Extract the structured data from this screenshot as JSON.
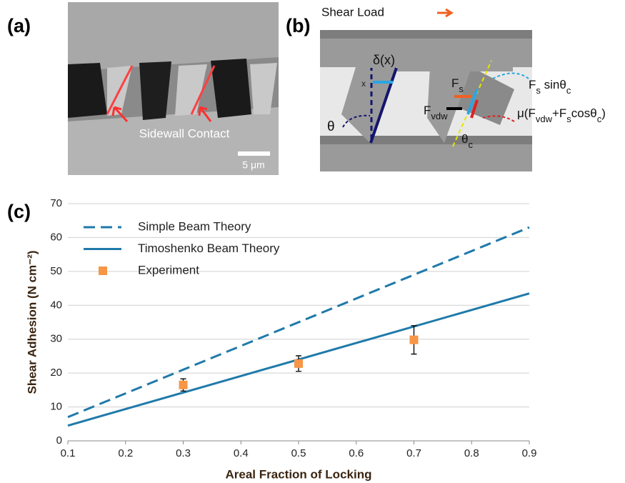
{
  "panel_a": {
    "label": "(a)",
    "annotation": "Sidewall Contact",
    "scale_bar": "5 μm"
  },
  "panel_b": {
    "label": "(b)",
    "load": "Shear Load",
    "delta": "δ(x)",
    "x": "x",
    "theta": "θ",
    "fs": [
      "F",
      "s"
    ],
    "fs_sin": [
      "F",
      "s",
      " sinθ",
      "c"
    ],
    "fvdw": [
      "F",
      "vdw"
    ],
    "theta_c": [
      "θ",
      "c"
    ],
    "friction": [
      "μ(F",
      "vdw",
      "+F",
      "s",
      "cosθ",
      "c",
      ")"
    ]
  },
  "chart_data": {
    "type": "line",
    "label": "(c)",
    "x_label": "Areal Fraction of Locking",
    "y_label": "Shear Adhesion (N cm⁻²)",
    "xlim": [
      0.1,
      0.9
    ],
    "xticks": [
      0.1,
      0.2,
      0.3,
      0.4,
      0.5,
      0.6,
      0.7,
      0.8,
      0.9
    ],
    "ylim": [
      0,
      70
    ],
    "yticks": [
      0,
      10,
      20,
      30,
      40,
      50,
      60,
      70
    ],
    "grid": true,
    "legend": "upper-left",
    "series": [
      {
        "name": "Simple Beam Theory",
        "color": "#1f7aaa",
        "style": "dashed",
        "x": [
          0.1,
          0.9
        ],
        "values": [
          7,
          63
        ]
      },
      {
        "name": "Timoshenko Beam Theory",
        "color": "#1f7aaa",
        "style": "solid",
        "x": [
          0.1,
          0.9
        ],
        "values": [
          4.5,
          43.5
        ]
      },
      {
        "name": "Experiment",
        "color": "#f79646",
        "style": "marker",
        "x": [
          0.3,
          0.5,
          0.7
        ],
        "values": [
          16.5,
          22.8,
          29.8
        ],
        "errors": [
          1.8,
          2.3,
          4.2
        ]
      }
    ]
  }
}
